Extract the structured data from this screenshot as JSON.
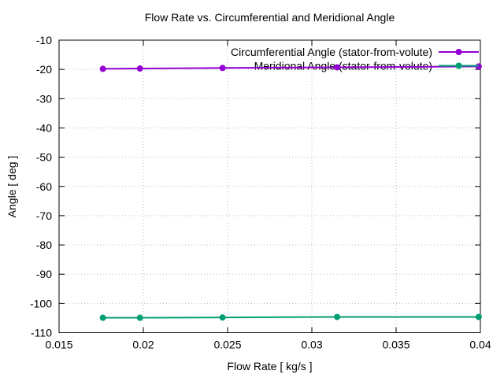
{
  "chart_data": {
    "type": "line",
    "title": "Flow Rate vs. Circumferential and Meridional Angle",
    "xlabel": "Flow Rate [ kg/s ]",
    "ylabel": "Angle [ deg ]",
    "xlim": [
      0.015,
      0.04
    ],
    "ylim": [
      -110,
      -10
    ],
    "x_ticks": [
      0.015,
      0.02,
      0.025,
      0.03,
      0.035,
      0.04
    ],
    "x_tick_labels": [
      "0.015",
      "0.02",
      "0.025",
      "0.03",
      "0.035",
      "0.04"
    ],
    "y_ticks": [
      -10,
      -20,
      -30,
      -40,
      -50,
      -60,
      -70,
      -80,
      -90,
      -100,
      -110
    ],
    "y_tick_labels": [
      "-10",
      "-20",
      "-30",
      "-40",
      "-50",
      "-60",
      "-70",
      "-80",
      "-90",
      "-100",
      "-110"
    ],
    "grid": true,
    "legend_position": "top-right-inside",
    "series": [
      {
        "name": "Circumferential Angle (stator-from-volute)",
        "color": "#9400D3",
        "marker": "circle",
        "x": [
          0.0176,
          0.0198,
          0.0247,
          0.0315,
          0.0399
        ],
        "y": [
          -19.8,
          -19.7,
          -19.5,
          -19.3,
          -19.0
        ]
      },
      {
        "name": "Meridional Angle (stator-from-volute)",
        "color": "#009E73",
        "marker": "circle",
        "x": [
          0.0176,
          0.0198,
          0.0247,
          0.0315,
          0.0399
        ],
        "y": [
          -104.9,
          -104.9,
          -104.8,
          -104.6,
          -104.6
        ]
      }
    ]
  },
  "colors": {
    "background": "#ffffff",
    "axis": "#000000",
    "grid": "#b8b8b8",
    "text": "#000000"
  }
}
